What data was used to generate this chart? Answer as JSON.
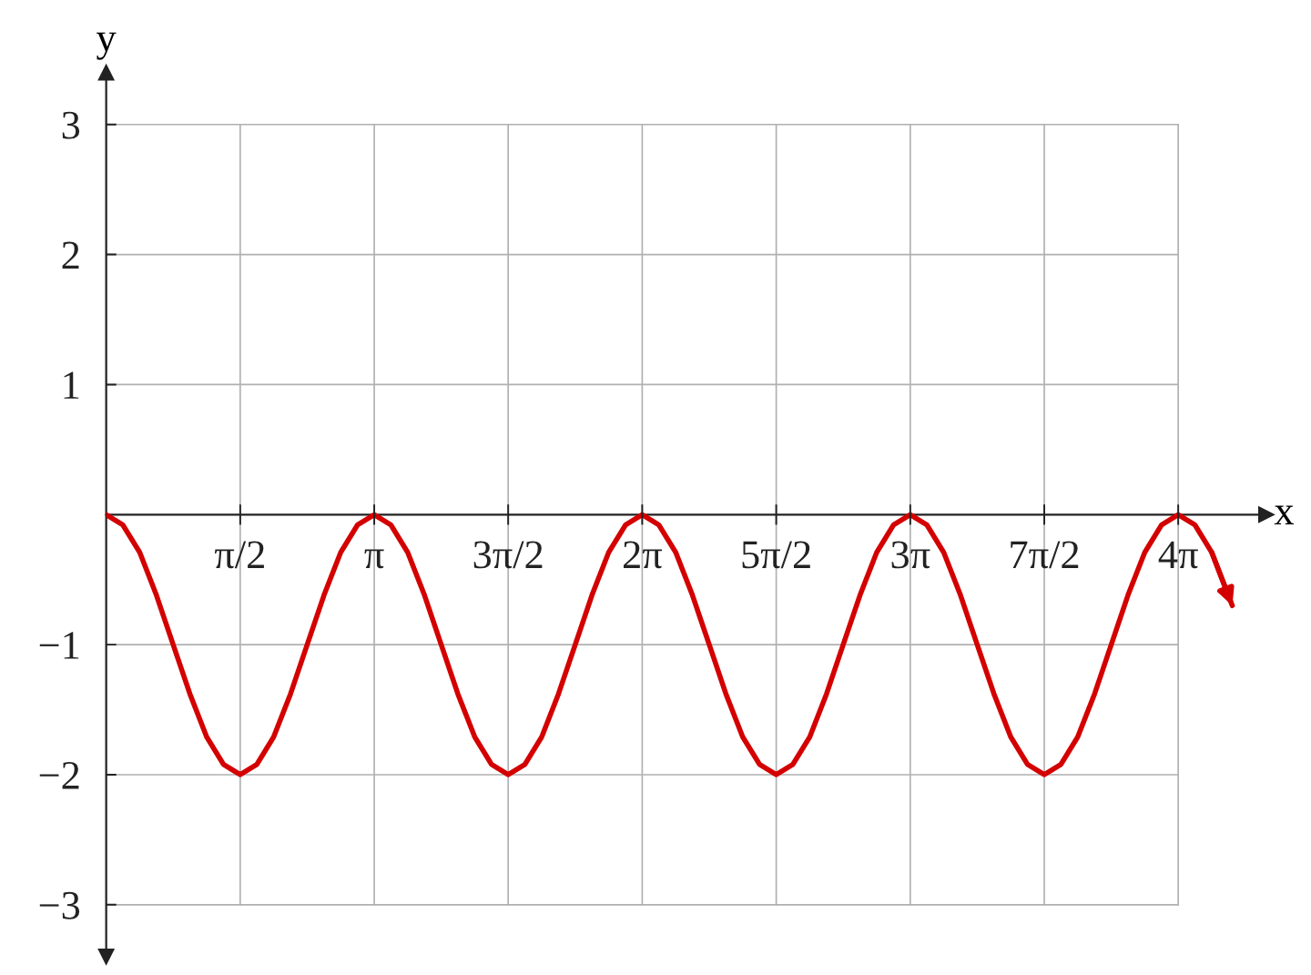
{
  "chart_data": {
    "type": "line",
    "xlabel": "x",
    "ylabel": "y",
    "series": [
      {
        "color": "#d40000",
        "x": [
          0,
          0.196,
          0.393,
          0.589,
          0.785,
          0.982,
          1.178,
          1.374,
          1.571,
          1.767,
          1.963,
          2.16,
          2.356,
          2.553,
          2.749,
          2.945,
          3.142,
          3.338,
          3.534,
          3.731,
          3.927,
          4.123,
          4.32,
          4.516,
          4.712,
          4.909,
          5.105,
          5.301,
          5.498,
          5.694,
          5.89,
          6.087,
          6.283,
          6.479,
          6.676,
          6.872,
          7.069,
          7.265,
          7.461,
          7.658,
          7.854,
          8.05,
          8.247,
          8.443,
          8.639,
          8.836,
          9.032,
          9.228,
          9.425,
          9.621,
          9.817,
          10.014,
          10.21,
          10.407,
          10.603,
          10.799,
          10.996,
          11.192,
          11.388,
          11.585,
          11.781,
          11.977,
          12.174,
          12.37,
          12.566,
          12.763,
          12.959,
          13.2
        ],
        "values": [
          0,
          -0.08,
          -0.29,
          -0.62,
          -1,
          -1.38,
          -1.71,
          -1.92,
          -2,
          -1.92,
          -1.71,
          -1.38,
          -1,
          -0.62,
          -0.29,
          -0.08,
          0,
          -0.08,
          -0.29,
          -0.62,
          -1,
          -1.38,
          -1.71,
          -1.92,
          -2,
          -1.92,
          -1.71,
          -1.38,
          -1,
          -0.62,
          -0.29,
          -0.08,
          0,
          -0.08,
          -0.29,
          -0.62,
          -1,
          -1.38,
          -1.71,
          -1.92,
          -2,
          -1.92,
          -1.71,
          -1.38,
          -1,
          -0.62,
          -0.29,
          -0.08,
          0,
          -0.08,
          -0.29,
          -0.62,
          -1,
          -1.38,
          -1.71,
          -1.92,
          -2,
          -1.92,
          -1.71,
          -1.38,
          -1,
          -0.62,
          -0.29,
          -0.08,
          0,
          -0.08,
          -0.29,
          -0.7
        ]
      }
    ],
    "xlim": [
      0,
      13.6
    ],
    "ylim": [
      -3.4,
      3.4
    ],
    "xticks": [
      {
        "value": 1.571,
        "label": "π/2"
      },
      {
        "value": 3.142,
        "label": "π"
      },
      {
        "value": 4.712,
        "label": "3π/2"
      },
      {
        "value": 6.283,
        "label": "2π"
      },
      {
        "value": 7.854,
        "label": "5π/2"
      },
      {
        "value": 9.425,
        "label": "3π"
      },
      {
        "value": 10.996,
        "label": "7π/2"
      },
      {
        "value": 12.566,
        "label": "4π"
      }
    ],
    "yticks": [
      -3,
      -2,
      -1,
      1,
      2,
      3
    ],
    "grid": true,
    "marker": "none",
    "line_style": "solid",
    "legend": false
  }
}
